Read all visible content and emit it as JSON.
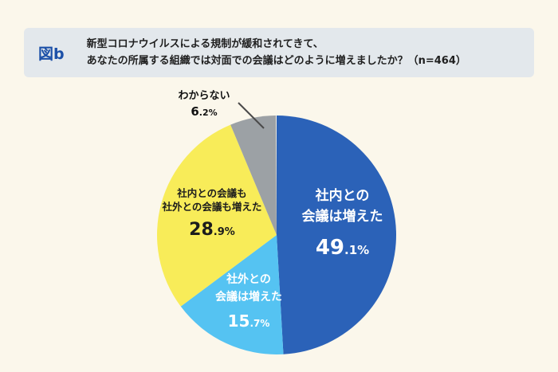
{
  "page": {
    "background": "#FBF7EB"
  },
  "header": {
    "tag": "図b",
    "question_line1": "新型コロナウイルスによる規制が緩和されてきて、",
    "question_line2": "あなたの所属する組織では対面での会議はどのように増えましたか？（n=464）"
  },
  "chart_data": {
    "type": "pie",
    "title": "新型コロナウイルスによる規制が緩和されてきて、あなたの所属する組織では対面での会議はどのように増えましたか？",
    "n": 464,
    "start_angle": "top",
    "direction": "clockwise",
    "slices": [
      {
        "label": "社内との会議は増えた",
        "value": 49.1,
        "color": "#2B62B8",
        "display": {
          "line1": "社内との",
          "line2": "会議は増えた",
          "pct_int": "49",
          "pct_frac": ".1%"
        }
      },
      {
        "label": "社外との会議は増えた",
        "value": 15.7,
        "color": "#55C3F2",
        "display": {
          "line1": "社外との",
          "line2": "会議は増えた",
          "pct_int": "15",
          "pct_frac": ".7%"
        }
      },
      {
        "label": "社内との会議も社外との会議も増えた",
        "value": 28.9,
        "color": "#F8EC59",
        "display": {
          "line1": "社内との会議も",
          "line2": "社外との会議も増えた",
          "pct_int": "28",
          "pct_frac": ".9%"
        }
      },
      {
        "label": "わからない",
        "value": 6.2,
        "color": "#9CA1A5",
        "display": {
          "line1": "わからない",
          "pct_int": "6",
          "pct_frac": ".2%"
        }
      }
    ]
  }
}
